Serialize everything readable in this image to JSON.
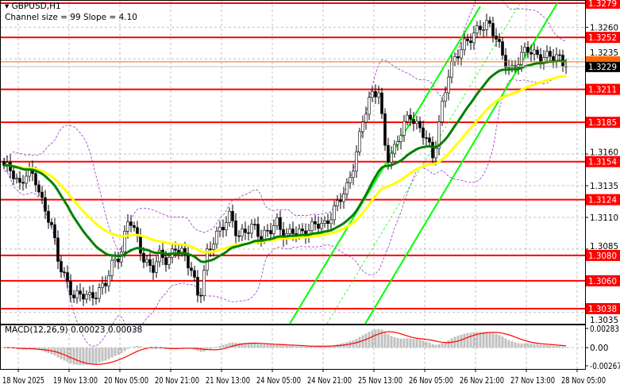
{
  "header": {
    "symbol_label": "GBPUSD,H1",
    "indicator_label": "Channel size = 99 Slope = 4.10",
    "macd_label": "MACD(12,26,9) 0.00023 0.00038"
  },
  "colors": {
    "level_line": "#ff0000",
    "fast_ma": "#008000",
    "slow_ma": "#ffff00",
    "channel": "#00ff00",
    "envelope": "#9932cc",
    "macd_hist": "#c0c0c0",
    "macd_signal": "#ff0000",
    "bid_tag": "#000000",
    "ask_line": "#ff6600"
  },
  "chart_data": {
    "type": "candlestick",
    "symbol": "GBPUSD",
    "timeframe": "H1",
    "ylim": [
      1.3033,
      1.3283
    ],
    "x_tick_labels": [
      "18 Nov 2025",
      "19 Nov 13:00",
      "20 Nov 05:00",
      "20 Nov 21:00",
      "21 Nov 13:00",
      "24 Nov 05:00",
      "24 Nov 21:00",
      "25 Nov 13:00",
      "26 Nov 05:00",
      "26 Nov 21:00",
      "27 Nov 13:00",
      "28 Nov 05:00"
    ],
    "y_tick_labels": [
      "1.3260",
      "1.3235",
      "1.3160",
      "1.3135",
      "1.3110",
      "1.3085",
      "1.3035"
    ],
    "level_lines": [
      "1.3279",
      "1.3252",
      "1.3211",
      "1.3185",
      "1.3154",
      "1.3124",
      "1.3080",
      "1.3060",
      "1.3038"
    ],
    "current_price": "1.3229",
    "grid": true,
    "close_path": [
      1.3151,
      1.3147,
      1.3134,
      1.3147,
      1.3141,
      1.3119,
      1.3106,
      1.3075,
      1.3059,
      1.3047,
      1.305,
      1.3047,
      1.305,
      1.3059,
      1.3075,
      1.3081,
      1.3112,
      1.3094,
      1.3075,
      1.3069,
      1.3081,
      1.3075,
      1.3087,
      1.3081,
      1.3069,
      1.3044,
      1.3081,
      1.3094,
      1.3103,
      1.3112,
      1.3094,
      1.31,
      1.3103,
      1.3094,
      1.31,
      1.3106,
      1.3094,
      1.31,
      1.3097,
      1.31,
      1.3106,
      1.3103,
      1.3112,
      1.3125,
      1.3134,
      1.3156,
      1.3188,
      1.3206,
      1.321,
      1.3156,
      1.3163,
      1.3181,
      1.3191,
      1.3181,
      1.3175,
      1.3156,
      1.3194,
      1.3225,
      1.3238,
      1.3247,
      1.3253,
      1.326,
      1.3263,
      1.3253,
      1.3235,
      1.3225,
      1.3235,
      1.3244,
      1.3238,
      1.3236,
      1.3238,
      1.3236,
      1.3229
    ],
    "macd": {
      "params": "12,26,9",
      "value": 0.00023,
      "signal": 0.00038,
      "y_tick_labels": [
        "0.00283",
        "0.00",
        "-0.00267"
      ],
      "ylim": [
        -0.00267,
        0.00283
      ]
    }
  }
}
